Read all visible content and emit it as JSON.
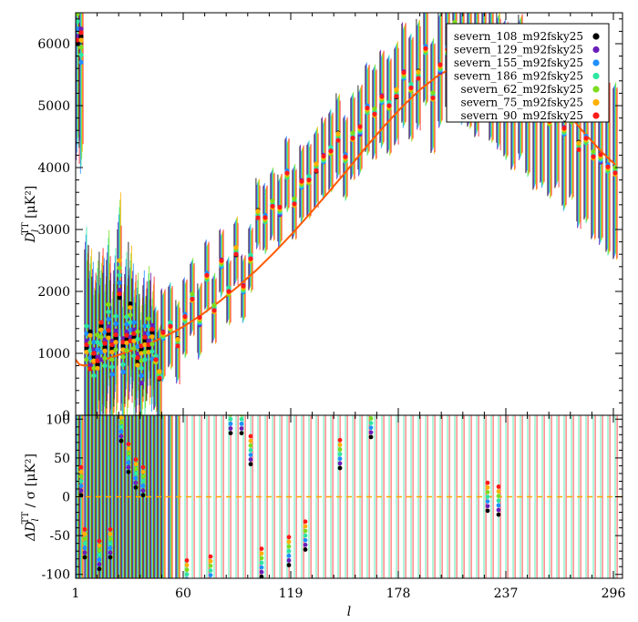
{
  "chart_data": {
    "type": "scatter",
    "panels": [
      {
        "name": "top",
        "ylabel_main": "D",
        "ylabel_sub": "l",
        "ylabel_sup": "TT",
        "ylabel_unit": "[μK²]",
        "ylim": [
          0,
          6500
        ],
        "yticks": [
          0,
          1000,
          2000,
          3000,
          4000,
          5000,
          6000
        ]
      },
      {
        "name": "bottom",
        "ylabel_main": "ΔD",
        "ylabel_sub": "l",
        "ylabel_sup": "TT",
        "ylabel_unit": "/ σ [μK²]",
        "ylim": [
          -105,
          105
        ],
        "yticks": [
          -100,
          -50,
          0,
          50,
          100
        ]
      }
    ],
    "xlabel": "l",
    "xlim": [
      1,
      301
    ],
    "xticks": [
      1,
      60,
      119,
      178,
      237,
      296
    ],
    "grid": false,
    "legend_position": "top-right",
    "series": [
      {
        "name": "severn_108_m92fsky25",
        "color": "#000000"
      },
      {
        "name": "severn_129_m92fsky25",
        "color": "#6a1fb8"
      },
      {
        "name": "severn_155_m92fsky25",
        "color": "#1e90ff"
      },
      {
        "name": "severn_186_m92fsky25",
        "color": "#2ee6a0"
      },
      {
        "name": "severn_62_m92fsky25",
        "color": "#7ddc1f"
      },
      {
        "name": "severn_75_m92fsky25",
        "color": "#ffb000"
      },
      {
        "name": "severn_90_m92fsky25",
        "color": "#ff1a1a"
      }
    ],
    "model_curve": {
      "color": "#ff5a00",
      "x": [
        1,
        3,
        6,
        10,
        15,
        20,
        25,
        30,
        40,
        50,
        60,
        70,
        80,
        90,
        100,
        110,
        120,
        130,
        140,
        150,
        160,
        170,
        180,
        190,
        200,
        210,
        220,
        230,
        240,
        250,
        260,
        270,
        280,
        290,
        297
      ],
      "y": [
        900,
        820,
        800,
        830,
        880,
        930,
        980,
        1030,
        1140,
        1270,
        1430,
        1620,
        1840,
        2080,
        2340,
        2630,
        2940,
        3270,
        3610,
        3960,
        4320,
        4660,
        4980,
        5260,
        5490,
        5650,
        5740,
        5740,
        5660,
        5480,
        5220,
        4910,
        4560,
        4240,
        4050
      ]
    },
    "points": {
      "x": [
        2,
        4,
        7,
        9,
        11,
        13,
        15,
        17,
        19,
        21,
        23,
        25,
        27,
        29,
        31,
        33,
        35,
        37,
        39,
        41,
        43,
        45,
        47,
        49,
        53,
        57,
        61,
        65,
        69,
        73,
        77,
        81,
        85,
        89,
        93,
        97,
        101,
        105,
        109,
        113,
        117,
        121,
        125,
        129,
        133,
        137,
        141,
        145,
        149,
        153,
        157,
        161,
        165,
        169,
        173,
        177,
        181,
        185,
        189,
        193,
        197,
        201,
        205,
        209,
        213,
        217,
        221,
        225,
        229,
        233,
        237,
        241,
        245,
        249,
        253,
        257,
        261,
        265,
        269,
        273,
        277,
        281,
        285,
        289,
        293,
        297
      ],
      "y": [
        6300,
        6000,
        1200,
        1050,
        880,
        1000,
        1200,
        1100,
        1550,
        900,
        1300,
        2200,
        1000,
        1350,
        1500,
        1200,
        1050,
        820,
        1200,
        1320,
        1150,
        900,
        650,
        1300,
        1450,
        1180,
        1570,
        1900,
        1520,
        2250,
        1730,
        2450,
        2000,
        2650,
        2050,
        2540,
        3250,
        3170,
        3400,
        3300,
        3900,
        3450,
        3730,
        3800,
        4000,
        4150,
        4280,
        4500,
        4150,
        4500,
        4600,
        4950,
        4900,
        5100,
        5000,
        5200,
        5500,
        5300,
        5500,
        5900,
        5150,
        5600,
        5900,
        6300,
        5700,
        5650,
        5550,
        6100,
        5500,
        5400,
        5250,
        5100,
        5300,
        5050,
        4850,
        4900,
        4750,
        4950,
        4600,
        4800,
        4350,
        4450,
        4200,
        4150,
        4000,
        3950
      ],
      "err": [
        2000,
        1800,
        1600,
        1400,
        1300,
        1200,
        1200,
        1200,
        1200,
        1100,
        1100,
        1100,
        1050,
        1050,
        1000,
        950,
        950,
        900,
        900,
        850,
        850,
        800,
        750,
        700,
        650,
        620,
        600,
        580,
        560,
        540,
        520,
        500,
        500,
        500,
        500,
        500,
        520,
        520,
        540,
        540,
        560,
        560,
        580,
        580,
        600,
        620,
        620,
        640,
        640,
        660,
        680,
        700,
        720,
        740,
        760,
        780,
        800,
        820,
        840,
        860,
        880,
        900,
        920,
        940,
        960,
        980,
        1000,
        1020,
        1040,
        1060,
        1080,
        1100,
        1120,
        1140,
        1160,
        1180,
        1200,
        1220,
        1240,
        1260,
        1280,
        1300,
        1320,
        1340,
        1360,
        1380
      ]
    },
    "residuals": {
      "x": [
        4,
        6,
        14,
        20,
        26,
        30,
        34,
        38,
        62,
        75,
        86,
        92,
        97,
        103,
        118,
        127,
        146,
        163,
        227,
        233
      ],
      "y": [
        20,
        -60,
        -75,
        -60,
        90,
        50,
        30,
        20,
        -100,
        -95,
        100,
        100,
        60,
        -85,
        -70,
        -50,
        55,
        95,
        0,
        -5
      ]
    }
  }
}
